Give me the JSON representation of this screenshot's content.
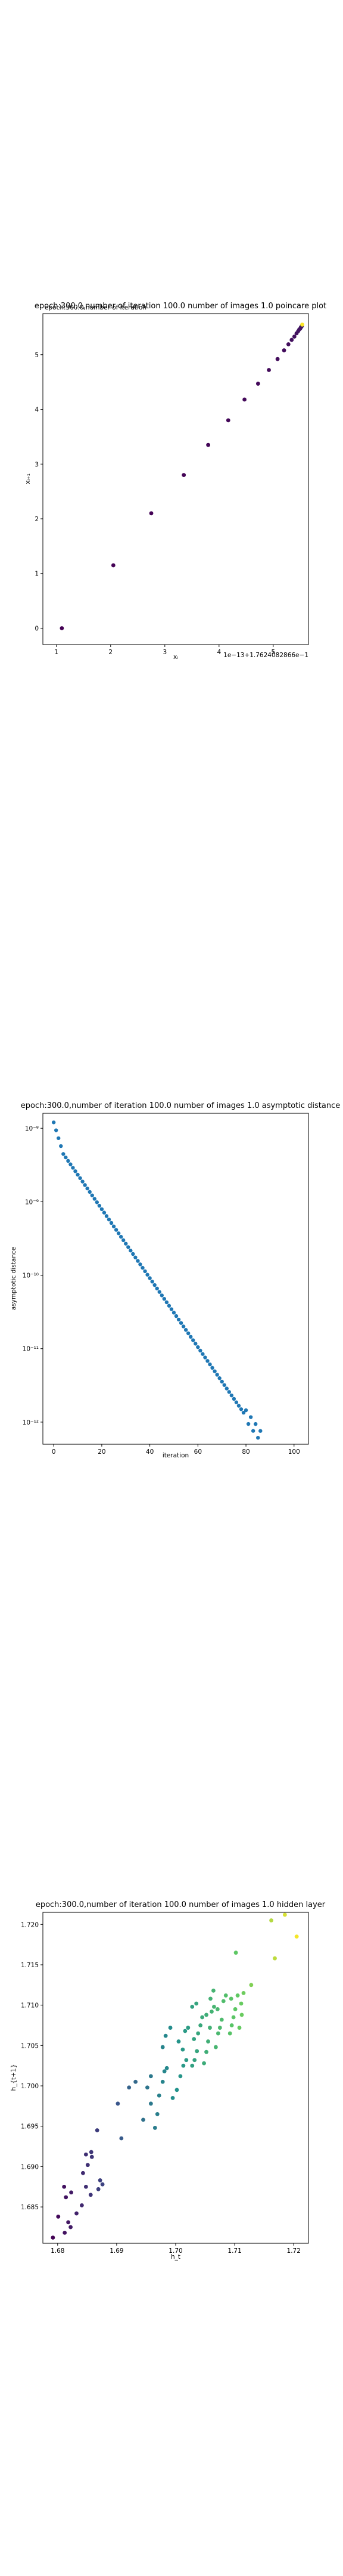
{
  "charts": [
    {
      "title": "epoch:300.0,number of iteration 100.0 number of images 1.0 poincare plot",
      "overlay_text": "epoch:300.0,number of iteration",
      "xlabel": "xᵢ",
      "ylabel": "xᵢ₊₁",
      "offset_text": "1e−13+1.7624082866e−1",
      "xticks": [
        "1",
        "2",
        "3",
        "4",
        "5"
      ],
      "yticks": [
        "0",
        "1",
        "2",
        "3",
        "4",
        "5"
      ]
    },
    {
      "title": "epoch:300.0,number of iteration 100.0  number of images 1.0 asymptotic distance",
      "xlabel": "iteration",
      "ylabel": "asymptotic distance",
      "xticks": [
        "0",
        "20",
        "40",
        "60",
        "80",
        "100"
      ],
      "yticks": [
        "10⁻⁸",
        "10⁻⁹",
        "10⁻¹⁰",
        "10⁻¹¹",
        "10⁻¹²"
      ]
    },
    {
      "title": "epoch:300.0,number of iteration 100.0  number of images 1.0 hidden layer",
      "xlabel": "h_t",
      "ylabel": "h_{t+1}",
      "xticks": [
        "1.68",
        "1.69",
        "1.70",
        "1.71",
        "1.72"
      ],
      "yticks": [
        "1.685",
        "1.690",
        "1.695",
        "1.700",
        "1.705",
        "1.710",
        "1.715",
        "1.720"
      ]
    }
  ],
  "chart_data": [
    {
      "type": "scatter",
      "title": "epoch:300.0,number of iteration 100.0 number of images 1.0 poincare plot",
      "xlabel": "xᵢ",
      "ylabel": "xᵢ₊₁",
      "x_offset": "1e-13+1.7624082866e-1",
      "y_offset": "1e-13+1.7624082866e-1",
      "xlim": [
        0.75,
        5.65
      ],
      "ylim": [
        -0.3,
        5.75
      ],
      "colormap": "viridis",
      "x": [
        1.1,
        2.05,
        2.75,
        3.35,
        3.8,
        4.17,
        4.47,
        4.72,
        4.92,
        5.08,
        5.2,
        5.28,
        5.34,
        5.39,
        5.43,
        5.46,
        5.48,
        5.5,
        5.51,
        5.52,
        5.53,
        5.535
      ],
      "y": [
        0.0,
        1.15,
        2.1,
        2.8,
        3.35,
        3.8,
        4.18,
        4.47,
        4.72,
        4.92,
        5.08,
        5.19,
        5.27,
        5.33,
        5.39,
        5.43,
        5.46,
        5.48,
        5.5,
        5.51,
        5.53,
        5.55
      ]
    },
    {
      "type": "scatter",
      "title": "epoch:300.0,number of iteration 100.0  number of images 1.0 asymptotic distance",
      "xlabel": "iteration",
      "ylabel": "asymptotic distance",
      "y_scale": "log",
      "xlim": [
        -4.5,
        106
      ],
      "ylim": [
        5e-13,
        1.6e-08
      ],
      "color": "#1f77b4",
      "series": [
        {
          "log10_y_start": -7.92,
          "log10_y_at_4": -8.35,
          "log10_y_end": -12.2,
          "x_start": 0,
          "x_end": 86
        }
      ]
    },
    {
      "type": "scatter",
      "title": "epoch:300.0,number of iteration 100.0  number of images 1.0 hidden layer",
      "xlabel": "h_t",
      "ylabel": "h_{t+1}",
      "xlim": [
        1.6775,
        1.7225
      ],
      "ylim": [
        1.6805,
        1.7215
      ],
      "colormap": "viridis",
      "points": [
        [
          1.6792,
          1.6812
        ],
        [
          1.6812,
          1.6818
        ],
        [
          1.6822,
          1.6825
        ],
        [
          1.6818,
          1.6831
        ],
        [
          1.6801,
          1.6838
        ],
        [
          1.6832,
          1.6842
        ],
        [
          1.6841,
          1.6852
        ],
        [
          1.6814,
          1.6862
        ],
        [
          1.6823,
          1.6868
        ],
        [
          1.6856,
          1.6865
        ],
        [
          1.6811,
          1.6875
        ],
        [
          1.6848,
          1.6875
        ],
        [
          1.6869,
          1.6872
        ],
        [
          1.6876,
          1.6878
        ],
        [
          1.6872,
          1.6883
        ],
        [
          1.6843,
          1.6892
        ],
        [
          1.6851,
          1.6902
        ],
        [
          1.6858,
          1.6912
        ],
        [
          1.6848,
          1.6915
        ],
        [
          1.6857,
          1.6918
        ],
        [
          1.6867,
          1.6945
        ],
        [
          1.6908,
          1.6935
        ],
        [
          1.6902,
          1.6978
        ],
        [
          1.6921,
          1.6998
        ],
        [
          1.6945,
          1.6958
        ],
        [
          1.6958,
          1.6978
        ],
        [
          1.6952,
          1.6998
        ],
        [
          1.6958,
          1.7012
        ],
        [
          1.6932,
          1.7005
        ],
        [
          1.6965,
          1.6948
        ],
        [
          1.6969,
          1.6965
        ],
        [
          1.6972,
          1.6988
        ],
        [
          1.6978,
          1.7005
        ],
        [
          1.6981,
          1.7018
        ],
        [
          1.6985,
          1.7022
        ],
        [
          1.6978,
          1.7048
        ],
        [
          1.6983,
          1.7062
        ],
        [
          1.6991,
          1.7072
        ],
        [
          1.6995,
          1.6985
        ],
        [
          1.7002,
          1.6995
        ],
        [
          1.7008,
          1.7012
        ],
        [
          1.7013,
          1.7025
        ],
        [
          1.7018,
          1.7032
        ],
        [
          1.7012,
          1.7045
        ],
        [
          1.7005,
          1.7055
        ],
        [
          1.7016,
          1.7068
        ],
        [
          1.7021,
          1.7072
        ],
        [
          1.7028,
          1.7025
        ],
        [
          1.7032,
          1.7032
        ],
        [
          1.7036,
          1.7043
        ],
        [
          1.7031,
          1.7058
        ],
        [
          1.7038,
          1.7065
        ],
        [
          1.7042,
          1.7075
        ],
        [
          1.7045,
          1.7085
        ],
        [
          1.7028,
          1.7098
        ],
        [
          1.7035,
          1.7102
        ],
        [
          1.7048,
          1.7028
        ],
        [
          1.7052,
          1.7042
        ],
        [
          1.7055,
          1.7055
        ],
        [
          1.7058,
          1.7072
        ],
        [
          1.7052,
          1.7088
        ],
        [
          1.7061,
          1.7092
        ],
        [
          1.7065,
          1.7098
        ],
        [
          1.7059,
          1.7108
        ],
        [
          1.7064,
          1.7118
        ],
        [
          1.7068,
          1.7048
        ],
        [
          1.7072,
          1.7065
        ],
        [
          1.7075,
          1.7072
        ],
        [
          1.7078,
          1.7082
        ],
        [
          1.7071,
          1.7095
        ],
        [
          1.7081,
          1.7105
        ],
        [
          1.7085,
          1.7112
        ],
        [
          1.7092,
          1.7065
        ],
        [
          1.7095,
          1.7075
        ],
        [
          1.7098,
          1.7085
        ],
        [
          1.7101,
          1.7095
        ],
        [
          1.7094,
          1.7108
        ],
        [
          1.7105,
          1.7112
        ],
        [
          1.7108,
          1.7072
        ],
        [
          1.7112,
          1.7088
        ],
        [
          1.7111,
          1.7102
        ],
        [
          1.7115,
          1.7115
        ],
        [
          1.7128,
          1.7125
        ],
        [
          1.7102,
          1.7165
        ],
        [
          1.7162,
          1.7205
        ],
        [
          1.7168,
          1.7158
        ],
        [
          1.7185,
          1.7212
        ],
        [
          1.7205,
          1.7185
        ]
      ]
    }
  ]
}
